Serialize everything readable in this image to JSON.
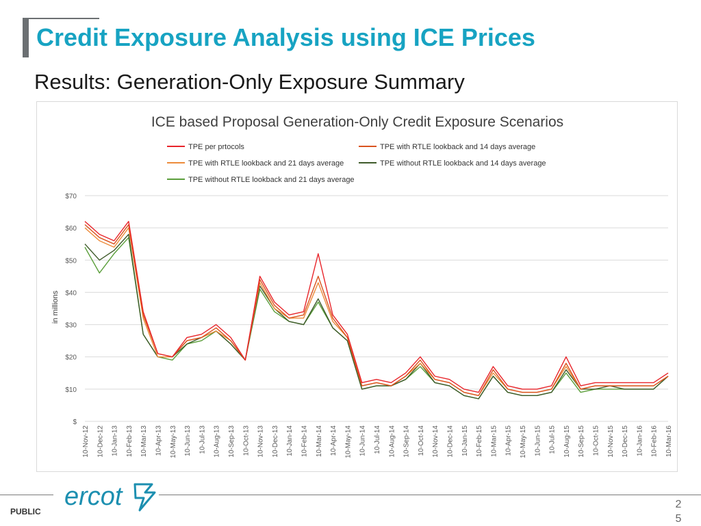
{
  "slide": {
    "title": "Credit Exposure Analysis using ICE Prices",
    "subtitle": "Results: Generation-Only Exposure Summary",
    "footer_label": "PUBLIC",
    "page_number": "25",
    "logo_text": "ercot"
  },
  "colors": {
    "title": "#17a3c2",
    "logo": "#1c8fb0",
    "series": [
      "#e8242a",
      "#d9531e",
      "#ed8b3a",
      "#3e5a2a",
      "#5a9e3a"
    ]
  },
  "chart_data": {
    "type": "line",
    "title": "ICE based Proposal Generation-Only Credit Exposure Scenarios",
    "ylabel": "in millions",
    "xlabel": "",
    "ylim": [
      0,
      70
    ],
    "y_ticks": [
      "$",
      "$10",
      "$20",
      "$30",
      "$40",
      "$50",
      "$60",
      "$70"
    ],
    "y_tick_values": [
      0,
      10,
      20,
      30,
      40,
      50,
      60,
      70
    ],
    "grid": true,
    "legend": [
      "TPE per prtocols",
      "TPE with RTLE lookback and 14 days average",
      "TPE with RTLE lookback and 21 days average",
      "TPE without RTLE lookback and 14 days average",
      "TPE without RTLE lookback and 21 days average"
    ],
    "legend_placement": "top",
    "x": [
      "10-Nov-12",
      "10-Dec-12",
      "10-Jan-13",
      "10-Feb-13",
      "10-Mar-13",
      "10-Apr-13",
      "10-May-13",
      "10-Jun-13",
      "10-Jul-13",
      "10-Aug-13",
      "10-Sep-13",
      "10-Oct-13",
      "10-Nov-13",
      "10-Dec-13",
      "10-Jan-14",
      "10-Feb-14",
      "10-Mar-14",
      "10-Apr-14",
      "10-May-14",
      "10-Jun-14",
      "10-Jul-14",
      "10-Aug-14",
      "10-Sep-14",
      "10-Oct-14",
      "10-Nov-14",
      "10-Dec-14",
      "10-Jan-15",
      "10-Feb-15",
      "10-Mar-15",
      "10-Apr-15",
      "10-May-15",
      "10-Jun-15",
      "10-Jul-15",
      "10-Aug-15",
      "10-Sep-15",
      "10-Oct-15",
      "10-Nov-15",
      "10-Dec-15",
      "10-Jan-16",
      "10-Feb-16",
      "10-Mar-16"
    ],
    "series": [
      {
        "name": "TPE per prtocols",
        "values": [
          62,
          58,
          56,
          62,
          34,
          21,
          20,
          26,
          27,
          30,
          26,
          19,
          45,
          37,
          33,
          34,
          52,
          33,
          27,
          12,
          13,
          12,
          15,
          20,
          14,
          13,
          10,
          9,
          17,
          11,
          10,
          10,
          11,
          20,
          11,
          12,
          12,
          12,
          12,
          12,
          15
        ]
      },
      {
        "name": "TPE with RTLE lookback and 14 days average",
        "values": [
          61,
          57,
          55,
          61,
          33,
          21,
          20,
          25,
          26,
          29,
          25,
          19,
          44,
          36,
          32,
          33,
          45,
          32,
          26,
          11,
          12,
          11,
          14,
          19,
          13,
          12,
          9,
          8,
          16,
          10,
          9,
          9,
          10,
          18,
          10,
          11,
          11,
          11,
          11,
          11,
          14
        ]
      },
      {
        "name": "TPE with RTLE lookback and 21 days average",
        "values": [
          60,
          56,
          54,
          60,
          32,
          20,
          20,
          25,
          26,
          28,
          25,
          19,
          43,
          35,
          32,
          32,
          43,
          31,
          26,
          11,
          12,
          11,
          14,
          18,
          13,
          12,
          9,
          8,
          15,
          10,
          9,
          9,
          10,
          17,
          10,
          11,
          11,
          11,
          11,
          11,
          14
        ]
      },
      {
        "name": "TPE without RTLE lookback and 14 days average",
        "values": [
          55,
          50,
          53,
          58,
          27,
          20,
          20,
          24,
          26,
          28,
          24,
          19,
          42,
          35,
          31,
          30,
          38,
          29,
          25,
          10,
          11,
          11,
          13,
          18,
          12,
          11,
          8,
          7,
          14,
          9,
          8,
          8,
          9,
          16,
          10,
          10,
          11,
          10,
          10,
          10,
          14
        ]
      },
      {
        "name": "TPE without RTLE lookback and 21 days average",
        "values": [
          54,
          46,
          52,
          57,
          27,
          20,
          19,
          24,
          25,
          28,
          24,
          19,
          41,
          34,
          31,
          30,
          37,
          29,
          25,
          10,
          11,
          11,
          13,
          17,
          12,
          11,
          8,
          7,
          14,
          9,
          8,
          8,
          9,
          15,
          9,
          10,
          10,
          10,
          10,
          10,
          14
        ]
      }
    ]
  }
}
